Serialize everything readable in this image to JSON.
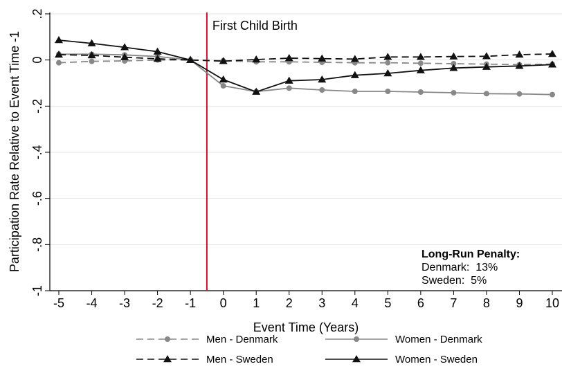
{
  "chart_data": {
    "type": "line",
    "xlabel": "Event Time (Years)",
    "ylabel": "Participation Rate Relative to Event Time -1",
    "x": [
      -5,
      -4,
      -3,
      -2,
      -1,
      0,
      1,
      2,
      3,
      4,
      5,
      6,
      7,
      8,
      9,
      10
    ],
    "xlim": [
      -5,
      10
    ],
    "ylim": [
      -1,
      0.2
    ],
    "xticks": [
      "-5",
      "-4",
      "-3",
      "-2",
      "-1",
      "0",
      "1",
      "2",
      "3",
      "4",
      "5",
      "6",
      "7",
      "8",
      "9",
      "10"
    ],
    "yticks": [
      {
        "value": 0.2,
        "label": ".2"
      },
      {
        "value": 0,
        "label": "0"
      },
      {
        "value": -0.2,
        "label": "-.2"
      },
      {
        "value": -0.4,
        "label": "-.4"
      },
      {
        "value": -0.6,
        "label": "-.6"
      },
      {
        "value": -0.8,
        "label": "-.8"
      },
      {
        "value": -1,
        "label": "-1"
      }
    ],
    "grid": true,
    "series": [
      {
        "name": "Men - Denmark",
        "color": "#888888",
        "dash": "dashed",
        "marker": "circle",
        "values": [
          -0.012,
          -0.006,
          -0.004,
          0.0,
          0.0,
          -0.003,
          -0.008,
          -0.008,
          -0.01,
          -0.012,
          -0.012,
          -0.014,
          -0.016,
          -0.018,
          -0.02,
          -0.018
        ]
      },
      {
        "name": "Women - Denmark",
        "color": "#888888",
        "dash": "solid",
        "marker": "circle",
        "values": [
          0.025,
          0.025,
          0.022,
          0.015,
          0.0,
          -0.112,
          -0.137,
          -0.122,
          -0.13,
          -0.136,
          -0.136,
          -0.139,
          -0.142,
          -0.146,
          -0.147,
          -0.15
        ]
      },
      {
        "name": "Men - Sweden",
        "color": "#111111",
        "dash": "dashed",
        "marker": "triangle",
        "values": [
          0.023,
          0.02,
          0.012,
          0.005,
          0.0,
          -0.005,
          0.002,
          0.008,
          0.006,
          0.004,
          0.013,
          0.013,
          0.015,
          0.016,
          0.023,
          0.026
        ]
      },
      {
        "name": "Women - Sweden",
        "color": "#111111",
        "dash": "solid",
        "marker": "triangle",
        "values": [
          0.086,
          0.072,
          0.055,
          0.036,
          0.0,
          -0.085,
          -0.138,
          -0.09,
          -0.085,
          -0.066,
          -0.058,
          -0.045,
          -0.035,
          -0.03,
          -0.026,
          -0.02
        ]
      }
    ],
    "event_line": {
      "x": -0.5,
      "label": "First Child Birth",
      "color": "#c8102e"
    },
    "annotation": {
      "title": "Long-Run Penalty:",
      "lines": [
        "Denmark:  13%",
        "Sweden:  5%"
      ]
    },
    "legend_position": "bottom"
  }
}
